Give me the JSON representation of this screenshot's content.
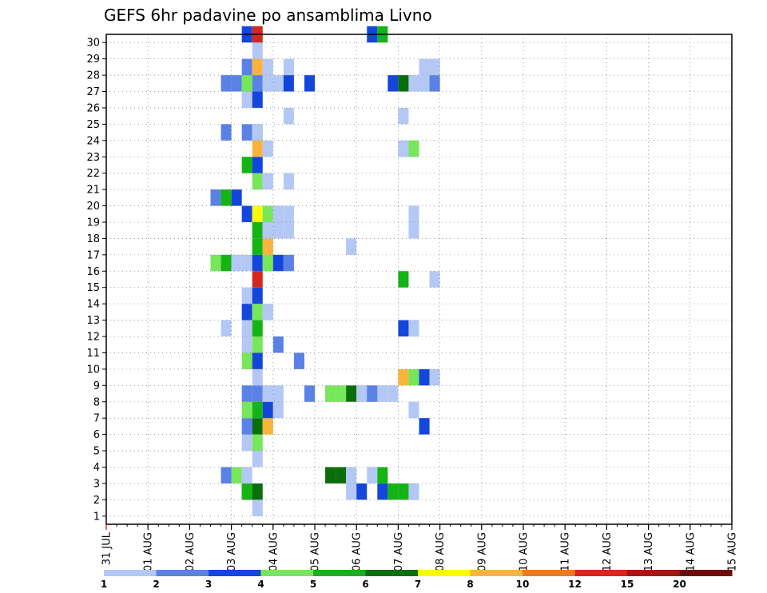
{
  "chart_data": {
    "type": "heatmap",
    "title": "GEFS 6hr padavine po ansamblima Livno",
    "x_tick_labels": [
      "31 JUL",
      "01 AUG",
      "02 AUG",
      "03 AUG",
      "04 AUG",
      "05 AUG",
      "06 AUG",
      "07 AUG",
      "08 AUG",
      "09 AUG",
      "10 AUG",
      "11 AUG",
      "12 AUG",
      "13 AUG",
      "14 AUG",
      "15 AUG"
    ],
    "y_tick_labels": [
      "1",
      "2",
      "3",
      "4",
      "5",
      "6",
      "7",
      "8",
      "9",
      "10",
      "11",
      "12",
      "13",
      "14",
      "15",
      "16",
      "17",
      "18",
      "19",
      "20",
      "21",
      "22",
      "23",
      "24",
      "25",
      "26",
      "27",
      "28",
      "29",
      "30"
    ],
    "xlim": [
      0,
      60
    ],
    "ylim": [
      0,
      30
    ],
    "grid": true,
    "colorbar": {
      "labels": [
        "1",
        "2",
        "3",
        "4",
        "5",
        "6",
        "7",
        "8",
        "10",
        "12",
        "15",
        "20"
      ],
      "colors": [
        "#b4c8f5",
        "#5a82e6",
        "#1446dc",
        "#78e65a",
        "#14b414",
        "#0a6e0a",
        "#fafa0a",
        "#fab43c",
        "#f57814",
        "#d2281e",
        "#aa1414",
        "#6e0a0a"
      ]
    },
    "cells": [
      [
        13,
        1,
        2
      ],
      [
        13,
        1,
        4
      ],
      [
        14,
        1,
        5
      ],
      [
        14,
        0,
        0
      ],
      [
        23,
        1,
        0
      ],
      [
        24,
        1,
        2
      ],
      [
        26,
        1,
        2
      ],
      [
        27,
        1,
        4
      ],
      [
        28,
        1,
        4
      ],
      [
        29,
        1,
        4
      ],
      [
        29,
        1,
        0
      ],
      [
        11,
        2,
        1
      ],
      [
        12,
        2,
        3
      ],
      [
        13,
        2,
        0
      ],
      [
        21,
        2,
        5
      ],
      [
        22,
        2,
        5
      ],
      [
        23,
        2,
        0
      ],
      [
        25,
        2,
        0
      ],
      [
        26,
        2,
        4
      ],
      [
        14,
        3,
        0
      ],
      [
        13,
        4,
        0
      ],
      [
        14,
        4,
        3
      ],
      [
        13,
        5,
        1
      ],
      [
        14,
        5,
        5
      ],
      [
        15,
        5,
        7
      ],
      [
        30,
        5,
        0
      ],
      [
        30,
        5,
        2
      ],
      [
        13,
        6,
        3
      ],
      [
        14,
        6,
        4
      ],
      [
        15,
        6,
        2
      ],
      [
        16,
        6,
        0
      ],
      [
        29,
        6,
        0
      ],
      [
        13,
        7,
        1
      ],
      [
        14,
        7,
        1
      ],
      [
        15,
        7,
        0
      ],
      [
        16,
        7,
        0
      ],
      [
        19,
        7,
        1
      ],
      [
        21,
        7,
        3
      ],
      [
        25,
        7,
        0
      ],
      [
        26,
        7,
        0
      ],
      [
        22,
        7,
        3
      ],
      [
        23,
        7,
        5
      ],
      [
        24,
        7,
        0
      ],
      [
        25,
        7,
        1
      ],
      [
        27,
        7,
        0
      ],
      [
        14,
        8,
        0
      ],
      [
        28,
        8,
        7
      ],
      [
        29,
        8,
        3
      ],
      [
        30,
        8,
        2
      ],
      [
        31,
        8,
        0
      ],
      [
        13,
        9,
        3
      ],
      [
        14,
        9,
        2
      ],
      [
        18,
        9,
        1
      ],
      [
        13,
        10,
        0
      ],
      [
        14,
        10,
        3
      ],
      [
        16,
        10,
        1
      ],
      [
        11,
        11,
        0
      ],
      [
        13,
        11,
        0
      ],
      [
        14,
        11,
        4
      ],
      [
        28,
        11,
        2
      ],
      [
        29,
        11,
        0
      ],
      [
        13,
        12,
        2
      ],
      [
        14,
        12,
        3
      ],
      [
        15,
        12,
        0
      ],
      [
        13,
        13,
        0
      ],
      [
        14,
        13,
        2
      ],
      [
        14,
        14,
        9
      ],
      [
        28,
        14,
        4
      ],
      [
        31,
        14,
        0
      ],
      [
        10,
        15,
        3
      ],
      [
        11,
        15,
        4
      ],
      [
        12,
        15,
        0
      ],
      [
        13,
        15,
        0
      ],
      [
        14,
        15,
        2
      ],
      [
        15,
        15,
        3
      ],
      [
        16,
        15,
        2
      ],
      [
        17,
        15,
        1
      ],
      [
        14,
        16,
        4
      ],
      [
        15,
        16,
        7
      ],
      [
        23,
        16,
        0
      ],
      [
        14,
        17,
        4
      ],
      [
        15,
        17,
        0
      ],
      [
        16,
        17,
        0
      ],
      [
        17,
        17,
        0
      ],
      [
        29,
        17,
        0
      ],
      [
        13,
        18,
        2
      ],
      [
        14,
        18,
        6
      ],
      [
        15,
        18,
        3
      ],
      [
        16,
        18,
        0
      ],
      [
        17,
        18,
        0
      ],
      [
        29,
        18,
        0
      ],
      [
        10,
        19,
        1
      ],
      [
        11,
        19,
        4
      ],
      [
        12,
        19,
        2
      ],
      [
        14,
        20,
        3
      ],
      [
        15,
        20,
        0
      ],
      [
        17,
        20,
        0
      ],
      [
        13,
        21,
        4
      ],
      [
        14,
        21,
        2
      ],
      [
        14,
        22,
        7
      ],
      [
        15,
        22,
        0
      ],
      [
        28,
        22,
        0
      ],
      [
        29,
        22,
        3
      ],
      [
        11,
        23,
        1
      ],
      [
        13,
        23,
        1
      ],
      [
        14,
        23,
        3
      ],
      [
        14,
        23,
        0
      ],
      [
        17,
        24,
        0
      ],
      [
        28,
        24,
        0
      ],
      [
        13,
        25,
        0
      ],
      [
        14,
        25,
        2
      ],
      [
        11,
        26,
        1
      ],
      [
        12,
        26,
        1
      ],
      [
        13,
        26,
        3
      ],
      [
        14,
        26,
        1
      ],
      [
        15,
        26,
        0
      ],
      [
        16,
        26,
        0
      ],
      [
        17,
        26,
        2
      ],
      [
        19,
        26,
        2
      ],
      [
        27,
        26,
        2
      ],
      [
        28,
        26,
        5
      ],
      [
        29,
        26,
        0
      ],
      [
        30,
        26,
        0
      ],
      [
        31,
        26,
        1
      ],
      [
        13,
        27,
        1
      ],
      [
        14,
        27,
        7
      ],
      [
        15,
        27,
        0
      ],
      [
        17,
        27,
        0
      ],
      [
        30,
        27,
        0
      ],
      [
        31,
        27,
        0
      ],
      [
        14,
        28,
        0
      ],
      [
        13,
        29,
        2
      ],
      [
        14,
        29,
        9
      ],
      [
        25,
        29,
        2
      ],
      [
        26,
        29,
        4
      ]
    ]
  }
}
